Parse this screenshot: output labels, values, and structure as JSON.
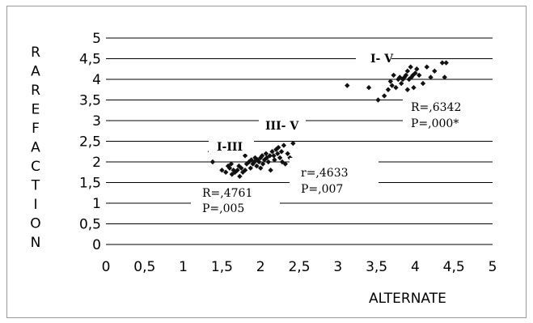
{
  "chart_data": {
    "type": "scatter",
    "xlabel": "ALTERNATE",
    "ylabel": "RAREFACTION",
    "xlim": [
      0,
      5
    ],
    "ylim": [
      0,
      5
    ],
    "x_ticks": [
      "0",
      "0,5",
      "1",
      "1,5",
      "2",
      "2,5",
      "3",
      "3,5",
      "4",
      "4,5",
      "5"
    ],
    "y_ticks": [
      "0",
      "0,5",
      "1",
      "1,5",
      "2",
      "2,5",
      "3",
      "3,5",
      "4",
      "4,5",
      "5"
    ],
    "grid": "horizontal",
    "marker_color": "#111111",
    "points": [
      {
        "x": 1.35,
        "y": 2.25
      },
      {
        "x": 1.38,
        "y": 2.0
      },
      {
        "x": 1.5,
        "y": 1.8
      },
      {
        "x": 1.55,
        "y": 1.75
      },
      {
        "x": 1.58,
        "y": 1.9
      },
      {
        "x": 1.6,
        "y": 1.85
      },
      {
        "x": 1.62,
        "y": 1.95
      },
      {
        "x": 1.63,
        "y": 1.7
      },
      {
        "x": 1.65,
        "y": 1.8
      },
      {
        "x": 1.67,
        "y": 1.75
      },
      {
        "x": 1.7,
        "y": 1.8
      },
      {
        "x": 1.72,
        "y": 1.9
      },
      {
        "x": 1.73,
        "y": 1.65
      },
      {
        "x": 1.75,
        "y": 1.85
      },
      {
        "x": 1.77,
        "y": 1.75
      },
      {
        "x": 1.8,
        "y": 1.8
      },
      {
        "x": 1.8,
        "y": 2.15
      },
      {
        "x": 1.82,
        "y": 1.95
      },
      {
        "x": 1.85,
        "y": 2.0
      },
      {
        "x": 1.87,
        "y": 1.85
      },
      {
        "x": 1.88,
        "y": 2.05
      },
      {
        "x": 1.9,
        "y": 1.95
      },
      {
        "x": 1.92,
        "y": 2.0
      },
      {
        "x": 1.93,
        "y": 2.1
      },
      {
        "x": 1.95,
        "y": 1.9
      },
      {
        "x": 1.96,
        "y": 2.05
      },
      {
        "x": 1.98,
        "y": 2.0
      },
      {
        "x": 2.0,
        "y": 2.1
      },
      {
        "x": 2.0,
        "y": 1.85
      },
      {
        "x": 2.02,
        "y": 2.15
      },
      {
        "x": 2.03,
        "y": 1.95
      },
      {
        "x": 2.05,
        "y": 2.05
      },
      {
        "x": 2.07,
        "y": 2.2
      },
      {
        "x": 2.08,
        "y": 2.1
      },
      {
        "x": 2.1,
        "y": 2.0
      },
      {
        "x": 2.12,
        "y": 2.15
      },
      {
        "x": 2.13,
        "y": 1.8
      },
      {
        "x": 2.15,
        "y": 2.25
      },
      {
        "x": 2.17,
        "y": 2.15
      },
      {
        "x": 2.18,
        "y": 2.05
      },
      {
        "x": 2.2,
        "y": 2.3
      },
      {
        "x": 2.22,
        "y": 2.2
      },
      {
        "x": 2.23,
        "y": 2.35
      },
      {
        "x": 2.25,
        "y": 2.1
      },
      {
        "x": 2.27,
        "y": 2.25
      },
      {
        "x": 2.28,
        "y": 2.0
      },
      {
        "x": 2.3,
        "y": 2.4
      },
      {
        "x": 2.32,
        "y": 1.95
      },
      {
        "x": 2.35,
        "y": 2.2
      },
      {
        "x": 2.38,
        "y": 2.1
      },
      {
        "x": 2.42,
        "y": 2.45
      },
      {
        "x": 3.12,
        "y": 3.85
      },
      {
        "x": 3.4,
        "y": 3.8
      },
      {
        "x": 3.52,
        "y": 3.5
      },
      {
        "x": 3.6,
        "y": 3.6
      },
      {
        "x": 3.65,
        "y": 3.75
      },
      {
        "x": 3.68,
        "y": 3.95
      },
      {
        "x": 3.7,
        "y": 3.85
      },
      {
        "x": 3.72,
        "y": 4.1
      },
      {
        "x": 3.75,
        "y": 3.8
      },
      {
        "x": 3.78,
        "y": 4.0
      },
      {
        "x": 3.8,
        "y": 4.05
      },
      {
        "x": 3.82,
        "y": 3.9
      },
      {
        "x": 3.84,
        "y": 4.0
      },
      {
        "x": 3.86,
        "y": 4.05
      },
      {
        "x": 3.88,
        "y": 4.1
      },
      {
        "x": 3.9,
        "y": 4.2
      },
      {
        "x": 3.9,
        "y": 3.75
      },
      {
        "x": 3.92,
        "y": 4.0
      },
      {
        "x": 3.94,
        "y": 4.3
      },
      {
        "x": 3.95,
        "y": 4.05
      },
      {
        "x": 3.97,
        "y": 4.1
      },
      {
        "x": 3.98,
        "y": 3.8
      },
      {
        "x": 4.0,
        "y": 4.15
      },
      {
        "x": 4.02,
        "y": 4.25
      },
      {
        "x": 4.05,
        "y": 4.1
      },
      {
        "x": 4.1,
        "y": 3.9
      },
      {
        "x": 4.15,
        "y": 4.3
      },
      {
        "x": 4.2,
        "y": 4.05
      },
      {
        "x": 4.25,
        "y": 4.2
      },
      {
        "x": 4.35,
        "y": 4.4
      },
      {
        "x": 4.38,
        "y": 4.05
      },
      {
        "x": 4.4,
        "y": 4.4
      }
    ],
    "annotations": [
      {
        "id": "group-1-3",
        "label": "I-III",
        "stats": [
          "R=,4761",
          "P=,005"
        ]
      },
      {
        "id": "group-3-5",
        "label": "III- V",
        "stats": [
          "r=,4633",
          "P=,007"
        ]
      },
      {
        "id": "group-1-5",
        "label": "I- V",
        "stats": [
          "R=,6342",
          "P=,000*"
        ]
      }
    ]
  }
}
